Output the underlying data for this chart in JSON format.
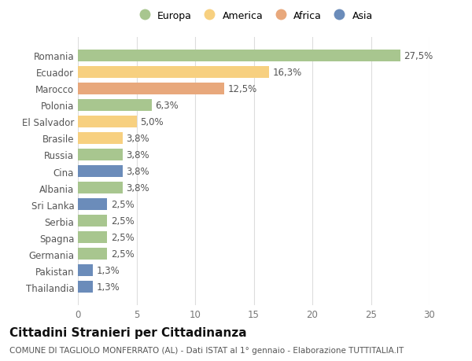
{
  "categories": [
    "Romania",
    "Ecuador",
    "Marocco",
    "Polonia",
    "El Salvador",
    "Brasile",
    "Russia",
    "Cina",
    "Albania",
    "Sri Lanka",
    "Serbia",
    "Spagna",
    "Germania",
    "Pakistan",
    "Thailandia"
  ],
  "values": [
    27.5,
    16.3,
    12.5,
    6.3,
    5.0,
    3.8,
    3.8,
    3.8,
    3.8,
    2.5,
    2.5,
    2.5,
    2.5,
    1.3,
    1.3
  ],
  "labels": [
    "27,5%",
    "16,3%",
    "12,5%",
    "6,3%",
    "5,0%",
    "3,8%",
    "3,8%",
    "3,8%",
    "3,8%",
    "2,5%",
    "2,5%",
    "2,5%",
    "2,5%",
    "1,3%",
    "1,3%"
  ],
  "continents": [
    "Europa",
    "America",
    "Africa",
    "Europa",
    "America",
    "America",
    "Europa",
    "Asia",
    "Europa",
    "Asia",
    "Europa",
    "Europa",
    "Europa",
    "Asia",
    "Asia"
  ],
  "colors": {
    "Europa": "#a8c68f",
    "America": "#f7d080",
    "Africa": "#e8a87c",
    "Asia": "#6b8cba"
  },
  "legend_order": [
    "Europa",
    "America",
    "Africa",
    "Asia"
  ],
  "xlim": [
    0,
    30
  ],
  "xticks": [
    0,
    5,
    10,
    15,
    20,
    25,
    30
  ],
  "title": "Cittadini Stranieri per Cittadinanza",
  "subtitle": "COMUNE DI TAGLIOLO MONFERRATO (AL) - Dati ISTAT al 1° gennaio - Elaborazione TUTTITALIA.IT",
  "background_color": "#ffffff",
  "grid_color": "#dddddd",
  "bar_height": 0.72,
  "label_fontsize": 8.5,
  "tick_fontsize": 8.5,
  "title_fontsize": 11,
  "subtitle_fontsize": 7.5
}
